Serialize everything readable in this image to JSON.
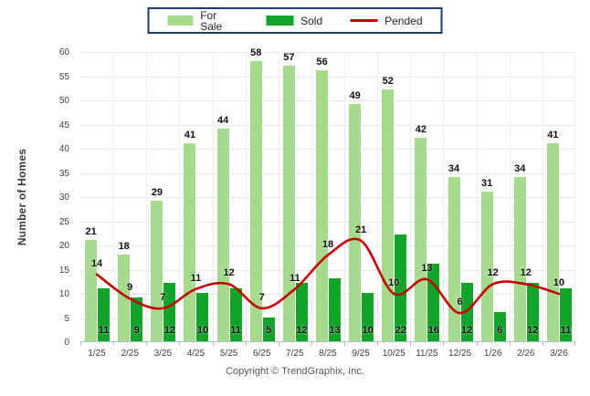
{
  "legend": {
    "for_sale_label": "For Sale",
    "sold_label": "Sold",
    "pended_label": "Pended"
  },
  "footer_text": "Copyright © TrendGraphix, Inc.",
  "colors": {
    "for_sale": "#a6db8d",
    "sold": "#12a32b",
    "pended": "#c40000",
    "legend_border": "#1f3d6b",
    "gridline": "#eaeaea",
    "axis_line": "#a9bfd2"
  },
  "chart_data": {
    "type": "bar",
    "subtype": "grouped-bars-with-line-overlay",
    "title": "",
    "xlabel": "",
    "ylabel": "Number of Homes",
    "ylim": [
      0,
      60
    ],
    "ytick_step": 5,
    "grid": true,
    "legend_position": "top-center",
    "categories": [
      "1/25",
      "2/25",
      "3/25",
      "4/25",
      "5/25",
      "6/25",
      "7/25",
      "8/25",
      "9/25",
      "10/25",
      "11/25",
      "12/25",
      "1/26",
      "2/26",
      "3/26"
    ],
    "series": [
      {
        "name": "For Sale",
        "type": "bar",
        "color": "#a6db8d",
        "values": [
          21,
          18,
          29,
          41,
          44,
          58,
          57,
          56,
          49,
          52,
          42,
          34,
          31,
          34,
          41
        ]
      },
      {
        "name": "Sold",
        "type": "bar",
        "color": "#12a32b",
        "values": [
          11,
          9,
          12,
          10,
          11,
          5,
          12,
          13,
          10,
          22,
          16,
          12,
          6,
          12,
          11
        ]
      },
      {
        "name": "Pended",
        "type": "line",
        "color": "#c40000",
        "values": [
          14,
          9,
          7,
          11,
          12,
          7,
          11,
          18,
          21,
          10,
          13,
          6,
          12,
          12,
          10
        ]
      }
    ]
  }
}
